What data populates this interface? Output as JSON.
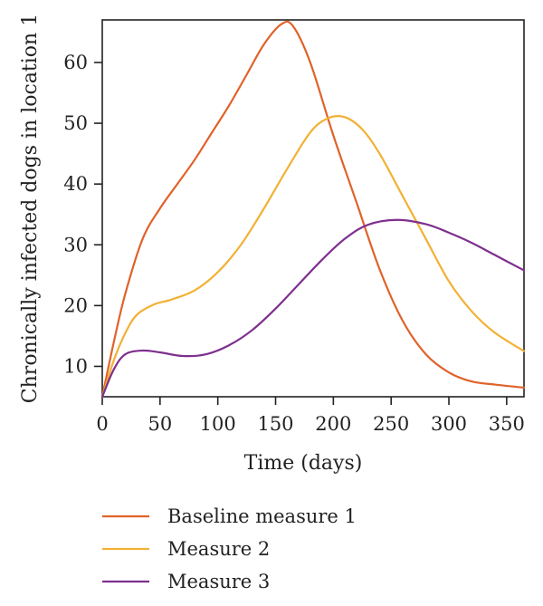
{
  "chart_data": {
    "type": "line",
    "xlabel": "Time (days)",
    "ylabel": "Chronically infected dogs in location 1",
    "xlim": [
      0,
      365
    ],
    "ylim": [
      5,
      67
    ],
    "xticks": [
      0,
      50,
      100,
      150,
      200,
      250,
      300,
      350
    ],
    "yticks": [
      10,
      20,
      30,
      40,
      50,
      60
    ],
    "grid": false,
    "legend_position": "bottom",
    "series": [
      {
        "name": "Baseline measure 1",
        "color": "#E0622A",
        "x": [
          0,
          10,
          20,
          35,
          50,
          65,
          80,
          95,
          110,
          125,
          140,
          155,
          165,
          180,
          200,
          220,
          240,
          260,
          280,
          300,
          320,
          340,
          365
        ],
        "y": [
          5,
          14,
          22,
          31,
          36,
          40,
          44,
          48.5,
          53,
          58,
          63,
          66.3,
          66,
          60,
          48,
          37,
          26,
          17.5,
          12,
          9,
          7.5,
          7,
          6.5
        ]
      },
      {
        "name": "Measure 2",
        "color": "#F2B134",
        "x": [
          0,
          10,
          20,
          30,
          45,
          60,
          80,
          100,
          120,
          140,
          160,
          180,
          195,
          210,
          225,
          240,
          260,
          280,
          300,
          320,
          340,
          365
        ],
        "y": [
          5,
          11,
          15.5,
          18.5,
          20.2,
          21,
          22.5,
          25.5,
          30,
          36,
          42.5,
          48.5,
          50.8,
          51,
          49,
          45,
          38,
          31,
          24,
          19,
          15.5,
          12.5
        ]
      },
      {
        "name": "Measure 3",
        "color": "#7E2F8E",
        "x": [
          0,
          10,
          20,
          35,
          50,
          70,
          90,
          110,
          130,
          150,
          170,
          190,
          210,
          230,
          255,
          280,
          300,
          320,
          340,
          365
        ],
        "y": [
          5,
          9.5,
          12,
          12.6,
          12.3,
          11.7,
          12,
          13.5,
          16,
          19.5,
          23.5,
          27.5,
          31,
          33.3,
          34.1,
          33.4,
          32,
          30.3,
          28.3,
          25.8
        ]
      }
    ]
  }
}
